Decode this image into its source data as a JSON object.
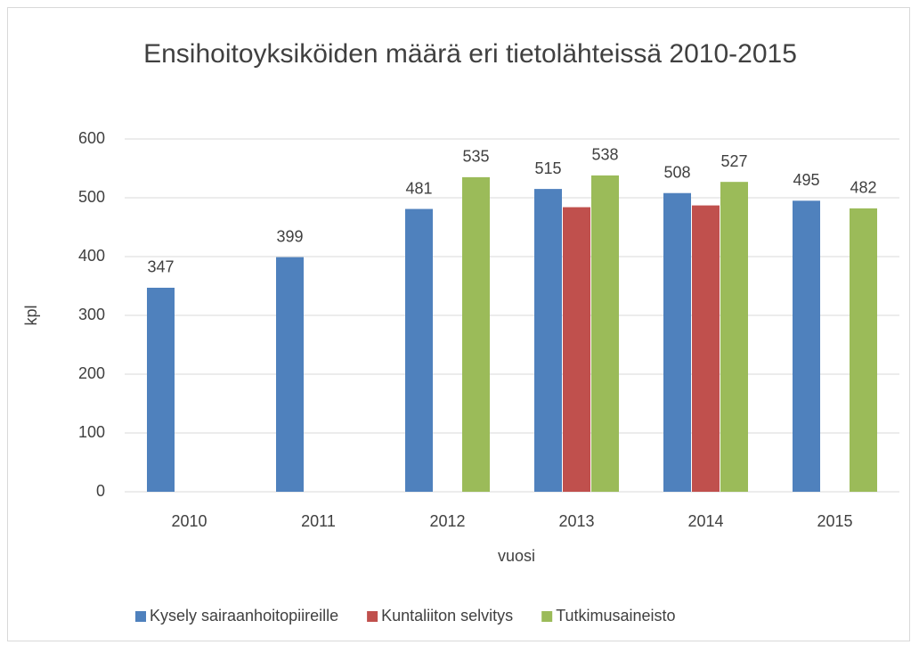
{
  "chart_data": {
    "type": "bar",
    "title": "Ensihoitoyksiköiden määrä eri tietolähteissä 2010-2015",
    "x_label": "vuosi",
    "y_label": "kpl",
    "categories": [
      "2010",
      "2011",
      "2012",
      "2013",
      "2014",
      "2015"
    ],
    "series": [
      {
        "name": "Kysely sairaanhoitopiireille",
        "color": "#4f81bd",
        "values": [
          347,
          399,
          481,
          515,
          508,
          495
        ],
        "show_labels": true
      },
      {
        "name": "Kuntaliiton selvitys",
        "color": "#c0504d",
        "values": [
          null,
          null,
          null,
          484,
          487,
          null
        ],
        "show_labels": false
      },
      {
        "name": "Tutkimusaineisto",
        "color": "#9bbb59",
        "values": [
          null,
          null,
          535,
          538,
          527,
          482
        ],
        "show_labels": true
      }
    ],
    "ylim": [
      0,
      600
    ],
    "yticks": [
      0,
      100,
      200,
      300,
      400,
      500,
      600
    ],
    "grid": true,
    "legend": "bottom"
  }
}
